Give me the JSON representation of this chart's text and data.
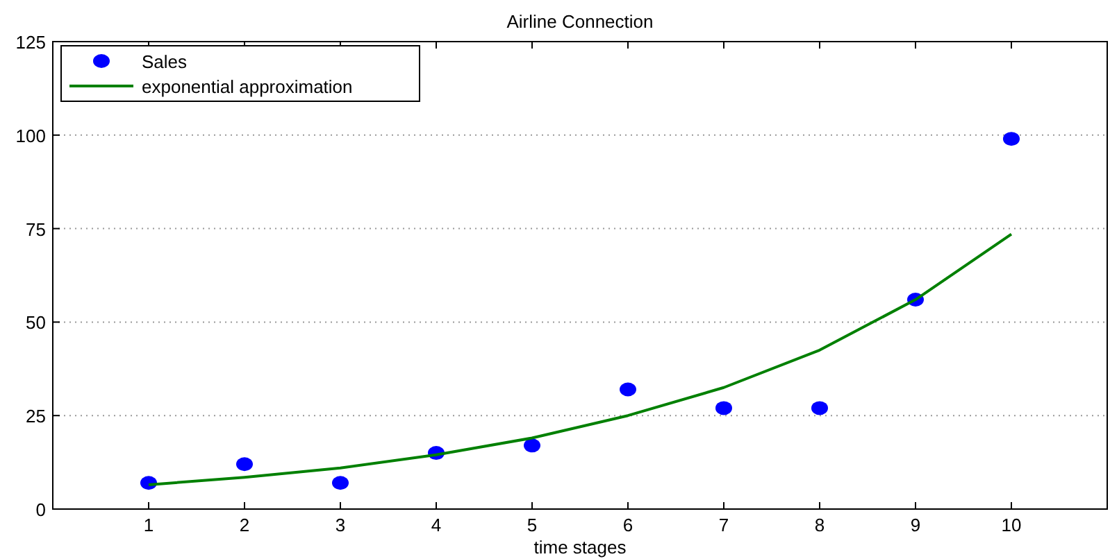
{
  "chart_data": {
    "type": "scatter",
    "title": "Airline Connection",
    "xlabel": "time stages",
    "xlim": [
      0,
      11
    ],
    "xticks": [
      1,
      2,
      3,
      4,
      5,
      6,
      7,
      8,
      9,
      10
    ],
    "ylim": [
      0,
      125
    ],
    "yticks": [
      0,
      25,
      50,
      75,
      100,
      125
    ],
    "grid": "y",
    "legend": "top left",
    "series": [
      {
        "name": "Sales",
        "marker": "circle",
        "color": "#0000ff",
        "x": [
          1,
          2,
          3,
          4,
          5,
          6,
          7,
          8,
          9,
          10
        ],
        "values": [
          7,
          12,
          7,
          15,
          17,
          32,
          27,
          27,
          56,
          99
        ]
      },
      {
        "name": "exponential approximation",
        "type": "line",
        "color": "#008000",
        "x": [
          1,
          2,
          3,
          4,
          5,
          6,
          7,
          8,
          9,
          10
        ],
        "values": [
          6.5,
          8.5,
          11,
          14.5,
          19,
          25,
          32.5,
          42.5,
          56,
          73.5
        ]
      }
    ]
  }
}
